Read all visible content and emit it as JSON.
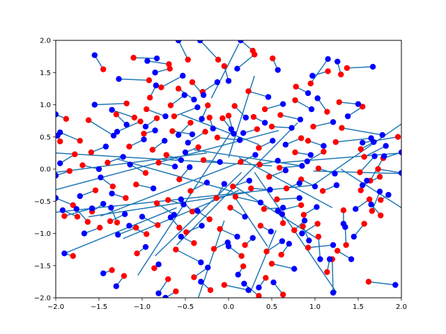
{
  "chart_data": {
    "type": "scatter",
    "title": "",
    "xlabel": "",
    "ylabel": "",
    "xlim": [
      -2.0,
      2.0
    ],
    "ylim": [
      -2.0,
      2.0
    ],
    "grid": false,
    "x_ticks": [
      "−2.0",
      "−1.5",
      "−1.0",
      "−0.5",
      "0.0",
      "0.5",
      "1.0",
      "1.5",
      "2.0"
    ],
    "x_tick_values": [
      -2.0,
      -1.5,
      -1.0,
      -0.5,
      0.0,
      0.5,
      1.0,
      1.5,
      2.0
    ],
    "y_ticks": [
      "−2.0",
      "−1.5",
      "−1.0",
      "−0.5",
      "0.0",
      "0.5",
      "1.0",
      "1.5",
      "2.0"
    ],
    "y_tick_values": [
      -2.0,
      -1.5,
      -1.0,
      -0.5,
      0.0,
      0.5,
      1.0,
      1.5,
      2.0
    ],
    "colors": {
      "start_points": "#ff0000",
      "end_points": "#0000ff",
      "lines": "#1f77b4"
    },
    "note_points": "Each segment connects a red point to a blue point; coordinates estimated from the figure.",
    "segments": [
      [
        -1.45,
        1.55,
        -1.55,
        1.77
      ],
      [
        -1.1,
        1.73,
        -0.83,
        1.72
      ],
      [
        -0.69,
        1.63,
        -0.94,
        1.68
      ],
      [
        -0.68,
        1.56,
        -0.85,
        1.5
      ],
      [
        -0.92,
        1.38,
        -1.27,
        1.4
      ],
      [
        -0.91,
        1.11,
        -0.84,
        1.3
      ],
      [
        -0.78,
        1.27,
        -0.53,
        1.45
      ],
      [
        -0.58,
        1.25,
        -0.4,
        1.08
      ],
      [
        -1.18,
        1.02,
        -1.55,
        1.0
      ],
      [
        -1.09,
        0.8,
        -1.35,
        0.92
      ],
      [
        -1.02,
        0.74,
        -1.29,
        0.58
      ],
      [
        -0.95,
        0.93,
        -0.73,
        0.82
      ],
      [
        -0.67,
        0.99,
        -0.51,
        1.15
      ],
      [
        -0.83,
        0.79,
        -0.96,
        0.66
      ],
      [
        -0.63,
        0.82,
        -0.36,
        0.96
      ],
      [
        -0.24,
        0.99,
        -0.31,
        0.78
      ],
      [
        -0.44,
        0.72,
        -0.58,
        0.53
      ],
      [
        -0.27,
        0.58,
        -0.47,
        0.41
      ],
      [
        -0.13,
        0.49,
        0.13,
        0.45
      ],
      [
        0.0,
        0.83,
        0.06,
        0.55
      ],
      [
        0.07,
        0.98,
        0.2,
        0.8
      ],
      [
        -0.42,
        1.35,
        -0.29,
        1.15
      ],
      [
        -0.3,
        1.2,
        -0.13,
        1.35
      ],
      [
        -0.05,
        1.6,
        0.0,
        1.37
      ],
      [
        -0.47,
        1.7,
        -0.58,
        2.0
      ],
      [
        -0.12,
        1.7,
        -0.33,
        2.0
      ],
      [
        0.28,
        1.84,
        0.14,
        2.0
      ],
      [
        0.3,
        1.78,
        0.1,
        1.56
      ],
      [
        0.51,
        1.72,
        0.57,
        1.54
      ],
      [
        0.95,
        1.33,
        1.15,
        1.71
      ],
      [
        1.3,
        1.47,
        1.26,
        1.67
      ],
      [
        1.37,
        1.57,
        1.67,
        1.59
      ],
      [
        1.15,
        1.52,
        0.97,
        1.45
      ],
      [
        0.78,
        1.28,
        0.92,
        1.18
      ],
      [
        1.28,
        1.04,
        1.5,
        1.01
      ],
      [
        1.55,
        0.97,
        1.38,
        0.82
      ],
      [
        1.14,
        0.89,
        1.03,
        1.1
      ],
      [
        1.31,
        0.64,
        1.78,
        0.53
      ],
      [
        1.53,
        0.31,
        1.68,
        0.42
      ],
      [
        1.79,
        0.17,
        2.0,
        0.26
      ],
      [
        1.96,
        0.5,
        1.55,
        0.41
      ],
      [
        1.24,
        0.42,
        1.65,
        0.48
      ],
      [
        1.57,
        0.19,
        1.82,
        0.36
      ],
      [
        1.52,
        -0.05,
        1.69,
        0.2
      ],
      [
        1.64,
        -0.18,
        1.8,
        0.2
      ],
      [
        1.73,
        0.0,
        2.0,
        -0.06
      ],
      [
        1.75,
        -0.12,
        1.55,
        -0.25
      ],
      [
        1.53,
        -0.33,
        1.6,
        -0.18
      ],
      [
        1.63,
        -0.47,
        1.47,
        -0.62
      ],
      [
        1.76,
        -0.48,
        1.85,
        -0.4
      ],
      [
        1.66,
        -0.65,
        1.75,
        -0.35
      ],
      [
        1.76,
        -0.72,
        1.65,
        -0.55
      ],
      [
        1.57,
        -0.85,
        1.45,
        -1.05
      ],
      [
        1.33,
        -0.64,
        1.33,
        -0.85
      ],
      [
        1.36,
        -1.18,
        1.35,
        -0.9
      ],
      [
        1.26,
        -1.27,
        1.42,
        -1.4
      ],
      [
        1.62,
        -1.75,
        1.93,
        -1.8
      ],
      [
        1.14,
        -1.6,
        1.17,
        -1.4
      ],
      [
        1.2,
        -1.4,
        1.21,
        -1.92
      ],
      [
        0.87,
        -0.71,
        1.02,
        -0.59
      ],
      [
        0.86,
        -0.89,
        0.93,
        -1.11
      ],
      [
        0.76,
        -0.95,
        0.88,
        -0.8
      ],
      [
        0.63,
        -0.84,
        0.62,
        -0.7
      ],
      [
        0.41,
        -0.62,
        0.63,
        -0.6
      ],
      [
        0.56,
        -0.47,
        0.82,
        -0.45
      ],
      [
        0.84,
        -0.56,
        0.57,
        -0.65
      ],
      [
        1.03,
        -0.85,
        0.85,
        -1.0
      ],
      [
        1.04,
        -1.05,
        1.06,
        -1.4
      ],
      [
        0.92,
        -1.22,
        1.21,
        -1.18
      ],
      [
        0.61,
        -1.33,
        0.7,
        -1.16
      ],
      [
        0.44,
        -1.28,
        0.62,
        -1.12
      ],
      [
        0.5,
        -1.47,
        0.76,
        -1.55
      ],
      [
        0.43,
        -1.69,
        0.35,
        -1.84
      ],
      [
        0.35,
        -1.97,
        0.18,
        -1.78
      ],
      [
        0.63,
        -1.95,
        0.52,
        -1.76
      ],
      [
        0.17,
        -1.51,
        0.11,
        -1.64
      ],
      [
        0.15,
        -1.35,
        0.0,
        -1.2
      ],
      [
        -0.05,
        -1.8,
        0.23,
        -1.88
      ],
      [
        -0.21,
        -1.88,
        -0.32,
        -1.75
      ],
      [
        -0.4,
        -1.68,
        -0.24,
        -1.53
      ],
      [
        -0.61,
        -1.25,
        -0.32,
        -1.45
      ],
      [
        -0.4,
        -1.15,
        -0.55,
        -1.05
      ],
      [
        -0.49,
        -0.98,
        -0.31,
        -0.88
      ],
      [
        -0.22,
        -0.78,
        -0.36,
        -0.65
      ],
      [
        -0.1,
        -0.93,
        0.1,
        -1.05
      ],
      [
        0.02,
        -0.6,
        0.19,
        -0.74
      ],
      [
        0.08,
        -0.43,
        0.37,
        -0.52
      ],
      [
        0.26,
        -0.3,
        0.48,
        -0.32
      ],
      [
        0.05,
        -0.27,
        0.24,
        -0.18
      ],
      [
        -0.14,
        -0.45,
        -0.05,
        -0.23
      ],
      [
        -0.42,
        -0.66,
        -0.55,
        -0.47
      ],
      [
        -0.7,
        -0.48,
        -0.52,
        -0.55
      ],
      [
        -0.83,
        -0.53,
        -0.63,
        -0.71
      ],
      [
        -0.82,
        -0.87,
        -1.0,
        -0.74
      ],
      [
        -0.95,
        -1.01,
        -1.15,
        -0.88
      ],
      [
        -1.07,
        -0.91,
        -1.28,
        -1.02
      ],
      [
        -1.29,
        -0.83,
        -1.36,
        -0.6
      ],
      [
        -1.37,
        -0.81,
        -1.2,
        -0.7
      ],
      [
        -1.49,
        -0.91,
        -1.67,
        -1.0
      ],
      [
        -1.58,
        -0.66,
        -1.45,
        -0.54
      ],
      [
        -1.63,
        -0.82,
        -1.76,
        -0.62
      ],
      [
        -1.75,
        -0.74,
        -1.92,
        -0.64
      ],
      [
        -1.9,
        -0.73,
        -1.58,
        -0.61
      ],
      [
        -1.8,
        -0.56,
        -2.0,
        -0.45
      ],
      [
        -1.54,
        -0.33,
        -1.72,
        -0.42
      ],
      [
        -1.34,
        -0.27,
        -1.48,
        -0.13
      ],
      [
        -1.19,
        -0.45,
        -1.35,
        -0.38
      ],
      [
        -1.07,
        -0.24,
        -0.87,
        -0.3
      ],
      [
        -0.96,
        -0.06,
        -1.14,
        0.07
      ],
      [
        -0.81,
        0.1,
        -0.62,
        0.04
      ],
      [
        -0.57,
        -0.16,
        -0.45,
        0.03
      ],
      [
        -0.44,
        -0.34,
        -0.25,
        -0.21
      ],
      [
        -0.29,
        0.14,
        -0.1,
        0.11
      ],
      [
        0.14,
        0.11,
        0.31,
        0.22
      ],
      [
        0.36,
        0.07,
        0.57,
        0.13
      ],
      [
        0.59,
        0.02,
        0.85,
        0.05
      ],
      [
        0.77,
        0.26,
        0.95,
        0.22
      ],
      [
        0.92,
        0.44,
        1.1,
        0.36
      ],
      [
        1.1,
        0.27,
        0.91,
        0.12
      ],
      [
        1.04,
        0.01,
        1.23,
        -0.07
      ],
      [
        0.84,
        -0.16,
        1.0,
        -0.27
      ],
      [
        1.09,
        -0.34,
        1.25,
        -0.25
      ],
      [
        0.67,
        -0.3,
        0.82,
        -0.22
      ],
      [
        0.47,
        -0.12,
        0.66,
        -0.02
      ],
      [
        0.35,
        0.33,
        0.51,
        0.44
      ],
      [
        0.5,
        0.66,
        0.73,
        0.64
      ],
      [
        0.6,
        0.84,
        0.83,
        0.77
      ],
      [
        0.42,
        0.93,
        0.63,
        1.01
      ],
      [
        0.23,
        1.21,
        0.46,
        1.12
      ],
      [
        0.77,
        1.07,
        0.96,
        0.93
      ],
      [
        0.98,
        0.66,
        1.21,
        0.73
      ],
      [
        0.84,
        0.48,
        0.66,
        0.38
      ],
      [
        -1.72,
        0.44,
        -1.95,
        0.57
      ],
      [
        -1.78,
        0.23,
        -1.95,
        0.09
      ],
      [
        -1.84,
        -0.03,
        -2.0,
        -0.1
      ],
      [
        -1.69,
        0.06,
        -1.5,
        0.0
      ],
      [
        -1.59,
        0.26,
        -1.42,
        0.35
      ],
      [
        -1.4,
        0.1,
        -1.22,
        0.19
      ],
      [
        -1.15,
        0.35,
        -0.98,
        0.46
      ],
      [
        -0.88,
        0.3,
        -0.74,
        0.44
      ],
      [
        -0.72,
        0.22,
        -0.55,
        0.14
      ],
      [
        -0.35,
        0.34,
        -0.5,
        0.26
      ],
      [
        -1.8,
        -1.35,
        -1.9,
        -1.31
      ],
      [
        -1.35,
        -1.57,
        -1.45,
        -1.62
      ],
      [
        -1.21,
        -1.66,
        -1.3,
        -1.82
      ],
      [
        -1.06,
        -1.31,
        -0.96,
        -1.21
      ],
      [
        -0.86,
        -1.54,
        -0.81,
        -1.48
      ],
      [
        -0.7,
        -1.71,
        -0.81,
        -1.93
      ],
      [
        -0.61,
        -1.9,
        -0.73,
        -2.0
      ],
      [
        -0.57,
        -0.91,
        -0.67,
        -0.75
      ],
      [
        -0.17,
        -1.24,
        -0.01,
        -1.14
      ],
      [
        0.19,
        -1.18,
        0.28,
        -1.07
      ],
      [
        0.37,
        -0.88,
        0.49,
        -0.97
      ],
      [
        -1.88,
        0.78,
        -2.0,
        0.85
      ],
      [
        -1.95,
        0.43,
        -1.98,
        0.52
      ],
      [
        -1.62,
        0.76,
        -1.33,
        0.52
      ],
      [
        -1.3,
        0.85,
        -1.18,
        0.69
      ],
      [
        -0.98,
        0.55,
        -0.85,
        0.6
      ],
      [
        -0.65,
        0.59,
        -0.42,
        0.54
      ],
      [
        -0.22,
        0.8,
        -0.18,
        0.63
      ],
      [
        -0.07,
        0.79,
        0.03,
        0.62
      ],
      [
        0.33,
        0.62,
        0.17,
        0.56
      ],
      [
        0.29,
        0.81,
        0.42,
        0.72
      ]
    ],
    "long_lines": [
      [
        -2.0,
        -0.32,
        0.58,
        0.6
      ],
      [
        -2.0,
        -0.67,
        0.98,
        -0.25
      ],
      [
        -1.9,
        -1.31,
        -0.6,
        -0.6
      ],
      [
        -2.0,
        0.25,
        0.5,
        0.05
      ],
      [
        -1.62,
        -0.74,
        0.24,
        -0.36
      ],
      [
        -1.48,
        -0.73,
        0.2,
        0.14
      ],
      [
        -1.22,
        -1.08,
        0.12,
        -0.33
      ],
      [
        -1.05,
        -1.65,
        0.05,
        0.62
      ],
      [
        -0.6,
        -1.18,
        0.8,
        0.72
      ],
      [
        0.98,
        -0.25,
        2.0,
        0.7
      ],
      [
        0.6,
        0.1,
        2.0,
        0.25
      ],
      [
        0.98,
        -0.03,
        2.0,
        -0.07
      ],
      [
        0.12,
        0.18,
        1.2,
        -0.6
      ],
      [
        0.05,
        -0.25,
        1.05,
        -1.1
      ],
      [
        0.3,
        -0.05,
        1.25,
        -1.92
      ],
      [
        -0.2,
        1.1,
        0.12,
        1.95
      ],
      [
        0.0,
        0.18,
        0.3,
        1.45
      ],
      [
        -0.85,
        -1.35,
        0.15,
        -0.05
      ],
      [
        -1.3,
        0.16,
        0.05,
        -0.35
      ],
      [
        -0.55,
        0.85,
        0.35,
        0.38
      ],
      [
        -0.4,
        0.3,
        0.85,
        0.05
      ],
      [
        0.45,
        -1.2,
        0.08,
        -0.45
      ],
      [
        0.25,
        -1.92,
        0.55,
        -0.95
      ],
      [
        -0.35,
        -2.0,
        -0.05,
        -0.8
      ],
      [
        1.3,
        0.0,
        2.0,
        -0.6
      ],
      [
        -2.0,
        -0.05,
        -0.25,
        0.25
      ]
    ]
  }
}
